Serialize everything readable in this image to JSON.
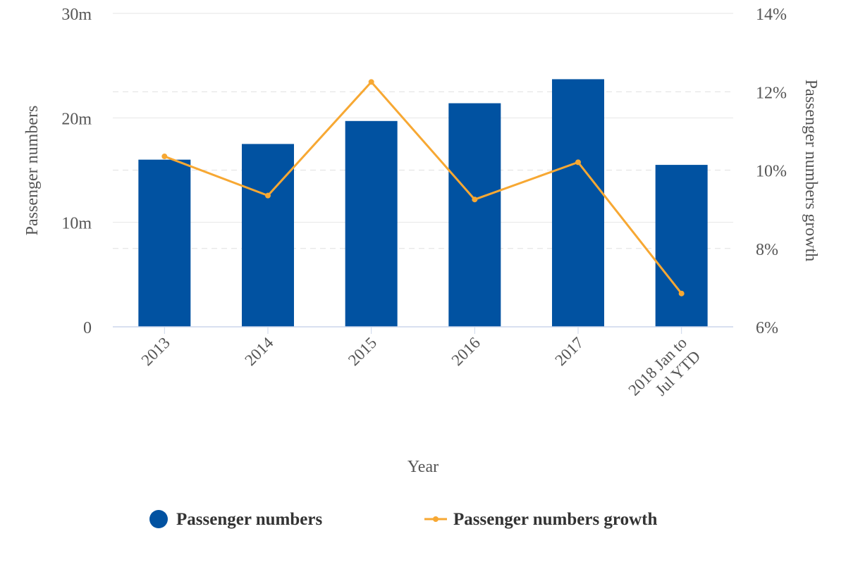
{
  "chart_data": {
    "type": "bar+line",
    "categories": [
      "2013",
      "2014",
      "2015",
      "2016",
      "2017",
      "2018 Jan to Jul YTD"
    ],
    "xlabel": "Year",
    "series": [
      {
        "name": "Passenger numbers",
        "type": "bar",
        "axis": "left",
        "color": "#0152A1",
        "values": [
          16.0,
          17.5,
          19.7,
          21.4,
          23.7,
          15.5
        ]
      },
      {
        "name": "Passenger numbers growth",
        "type": "line",
        "axis": "right",
        "color": "#F7A833",
        "values": [
          10.35,
          9.35,
          12.25,
          9.25,
          10.2,
          6.85
        ]
      }
    ],
    "y_left": {
      "label": "Passenger numbers",
      "ylim": [
        0,
        30
      ],
      "ticks": [
        0,
        10,
        20,
        30
      ],
      "tick_labels": [
        "0",
        "10m",
        "20m",
        "30m"
      ]
    },
    "y_right": {
      "label": "Passenger numbers growth",
      "ylim": [
        6,
        14
      ],
      "ticks": [
        6,
        8,
        10,
        12,
        14
      ],
      "tick_labels": [
        "6%",
        "8%",
        "10%",
        "12%",
        "14%"
      ]
    },
    "grid": true,
    "legend_position": "bottom"
  }
}
